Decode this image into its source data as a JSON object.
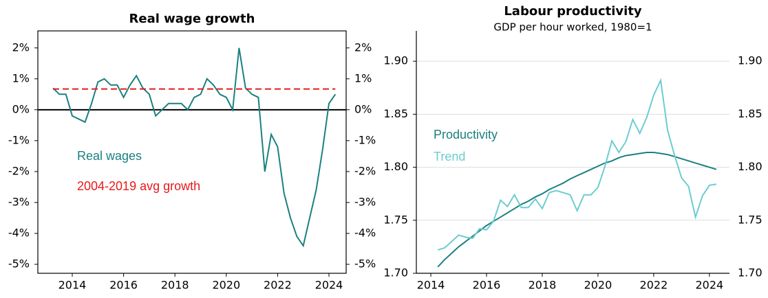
{
  "chart_data": [
    {
      "type": "line",
      "title": "Real wage growth",
      "x": [
        2013.25,
        2013.5,
        2013.75,
        2014,
        2014.25,
        2014.5,
        2014.75,
        2015,
        2015.25,
        2015.5,
        2015.75,
        2016,
        2016.25,
        2016.5,
        2016.75,
        2017,
        2017.25,
        2017.5,
        2017.75,
        2018,
        2018.25,
        2018.5,
        2018.75,
        2019,
        2019.25,
        2019.5,
        2019.75,
        2020,
        2020.25,
        2020.5,
        2020.75,
        2021,
        2021.25,
        2021.5,
        2021.75,
        2022,
        2022.25,
        2022.5,
        2022.75,
        2023,
        2023.25,
        2023.5,
        2023.75,
        2024,
        2024.25
      ],
      "series": [
        {
          "name": "Real wages",
          "color": "#1a8080",
          "values": [
            0.7,
            0.5,
            0.5,
            -0.2,
            -0.3,
            -0.4,
            0.2,
            0.9,
            1.0,
            0.8,
            0.8,
            0.4,
            0.8,
            1.1,
            0.7,
            0.5,
            -0.2,
            0.0,
            0.2,
            0.2,
            0.2,
            0.0,
            0.4,
            0.5,
            1.0,
            0.8,
            0.5,
            0.4,
            0.0,
            2.0,
            0.7,
            0.5,
            0.4,
            -2.0,
            -0.8,
            -1.2,
            -2.7,
            -3.5,
            -4.1,
            -4.4,
            -3.5,
            -2.6,
            -1.3,
            0.2,
            0.5
          ]
        },
        {
          "name": "2004-2019 avg growth",
          "color": "#e8191a",
          "dashed": true,
          "values": [
            0.67,
            0.67,
            0.67,
            0.67,
            0.67,
            0.67,
            0.67,
            0.67,
            0.67,
            0.67,
            0.67,
            0.67,
            0.67,
            0.67,
            0.67,
            0.67,
            0.67,
            0.67,
            0.67,
            0.67,
            0.67,
            0.67,
            0.67,
            0.67,
            0.67,
            0.67,
            0.67,
            0.67,
            0.67,
            0.67,
            0.67,
            0.67,
            0.67,
            0.67,
            0.67,
            0.67,
            0.67,
            0.67,
            0.67,
            0.67,
            0.67,
            0.67,
            0.67,
            0.67,
            0.67
          ]
        }
      ],
      "xlim": [
        2012.66,
        2024.67
      ],
      "xticks": [
        2014,
        2016,
        2018,
        2020,
        2022,
        2024
      ],
      "ylim": [
        -5.29,
        2.55
      ],
      "yticks": [
        {
          "value": -5,
          "label": "-5%"
        },
        {
          "value": -4,
          "label": "-4%"
        },
        {
          "value": -3,
          "label": "-3%"
        },
        {
          "value": -2,
          "label": "-2%"
        },
        {
          "value": -1,
          "label": "-1%"
        },
        {
          "value": 0,
          "label": "0%"
        },
        {
          "value": 1,
          "label": "1%"
        },
        {
          "value": 2,
          "label": "2%"
        }
      ],
      "y2lim": [
        -5.29,
        2.55
      ],
      "y2ticks": [
        {
          "value": -5,
          "label": "-5%"
        },
        {
          "value": -4,
          "label": "-4%"
        },
        {
          "value": -3,
          "label": "-3%"
        },
        {
          "value": -2,
          "label": "-2%"
        },
        {
          "value": -1,
          "label": "-1%"
        },
        {
          "value": 0,
          "label": "0%"
        },
        {
          "value": 1,
          "label": "1%"
        },
        {
          "value": 2,
          "label": "2%"
        }
      ],
      "zero_line": true,
      "frame": true,
      "grid": false,
      "legend": "left"
    },
    {
      "type": "line",
      "title": "Labour productivity",
      "subtitle": "GDP per hour worked, 1980=1",
      "x": [
        2014.25,
        2014.5,
        2014.75,
        2015,
        2015.25,
        2015.5,
        2015.75,
        2016,
        2016.25,
        2016.5,
        2016.75,
        2017,
        2017.25,
        2017.5,
        2017.75,
        2018,
        2018.25,
        2018.5,
        2018.75,
        2019,
        2019.25,
        2019.5,
        2019.75,
        2020,
        2020.25,
        2020.5,
        2020.75,
        2021,
        2021.25,
        2021.5,
        2021.75,
        2022,
        2022.25,
        2022.5,
        2022.75,
        2023,
        2023.25,
        2023.5,
        2023.75,
        2024,
        2024.25
      ],
      "series": [
        {
          "name": "Productivity",
          "color": "#1a8080",
          "values": [
            1.706,
            1.713,
            1.719,
            1.725,
            1.73,
            1.735,
            1.74,
            1.745,
            1.749,
            1.753,
            1.757,
            1.761,
            1.765,
            1.768,
            1.772,
            1.775,
            1.779,
            1.782,
            1.785,
            1.789,
            1.792,
            1.795,
            1.798,
            1.801,
            1.804,
            1.806,
            1.809,
            1.811,
            1.812,
            1.813,
            1.814,
            1.814,
            1.813,
            1.812,
            1.81,
            1.808,
            1.806,
            1.804,
            1.802,
            1.8,
            1.798
          ]
        },
        {
          "name": "Trend",
          "color": "#6cccd0",
          "values": [
            1.722,
            1.724,
            1.73,
            1.736,
            1.734,
            1.733,
            1.742,
            1.741,
            1.749,
            1.769,
            1.763,
            1.774,
            1.762,
            1.762,
            1.77,
            1.761,
            1.776,
            1.778,
            1.776,
            1.774,
            1.759,
            1.774,
            1.774,
            1.781,
            1.801,
            1.825,
            1.814,
            1.824,
            1.845,
            1.832,
            1.847,
            1.868,
            1.882,
            1.835,
            1.811,
            1.79,
            1.782,
            1.753,
            1.773,
            1.783,
            1.784
          ]
        }
      ],
      "xlim": [
        2013.48,
        2024.72
      ],
      "xticks": [
        2014,
        2016,
        2018,
        2020,
        2022,
        2024
      ],
      "ylim": [
        1.7,
        1.9286
      ],
      "yticks": [
        {
          "value": 1.7,
          "label": "1.70"
        },
        1.75,
        {
          "value": 1.8,
          "label": "1.80"
        },
        1.85,
        {
          "value": 1.9,
          "label": "1.90"
        }
      ],
      "y2lim": [
        1.7,
        1.9286
      ],
      "y2ticks": [
        {
          "value": 1.7,
          "label": "1.70"
        },
        1.75,
        {
          "value": 1.8,
          "label": "1.80"
        },
        1.85,
        {
          "value": 1.9,
          "label": "1.90"
        }
      ],
      "zero_line": false,
      "frame": false,
      "grid": true,
      "legend": "left"
    }
  ]
}
